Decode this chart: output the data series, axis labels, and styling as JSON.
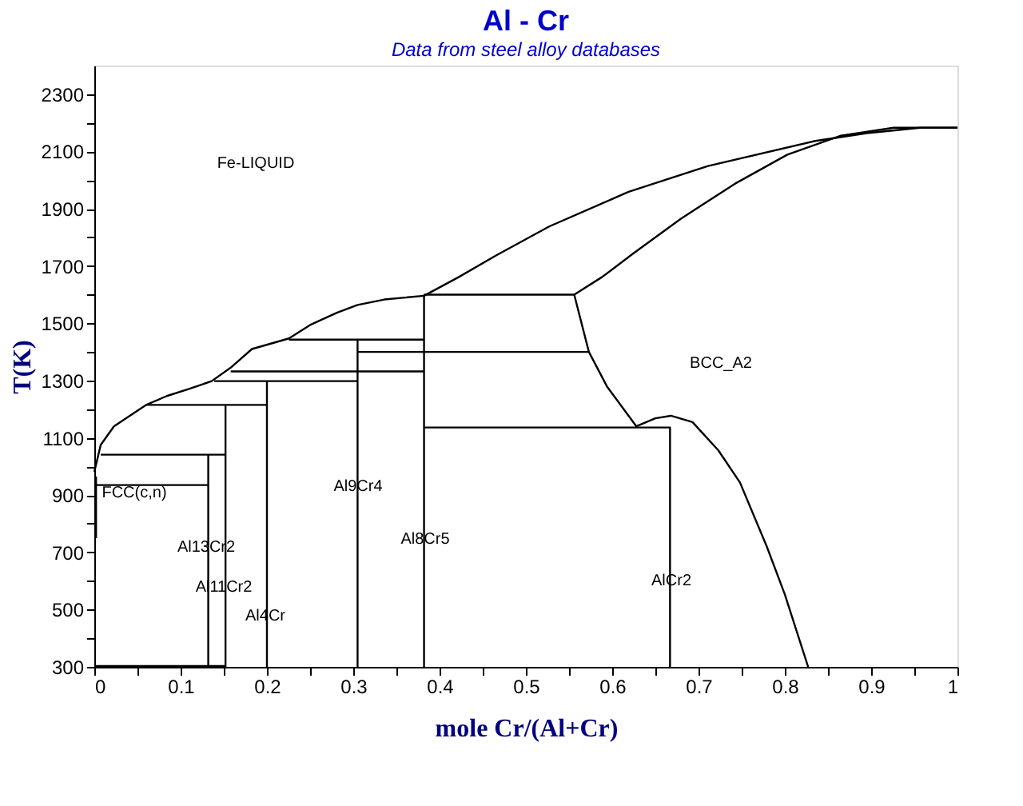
{
  "chart_data": {
    "type": "line",
    "title": "Al - Cr",
    "subtitle": "Data from steel alloy databases",
    "xlabel": "mole Cr/(Al+Cr)",
    "ylabel": "T(K)",
    "xlim": [
      0,
      1
    ],
    "ylim": [
      300,
      2400
    ],
    "xticks": [
      0,
      {
        "value": 0.05,
        "label": null
      },
      0.1,
      {
        "value": 0.15,
        "label": null
      },
      0.2,
      {
        "value": 0.25,
        "label": null
      },
      0.3,
      {
        "value": 0.35,
        "label": null
      },
      0.4,
      {
        "value": 0.45,
        "label": null
      },
      0.5,
      {
        "value": 0.55,
        "label": null
      },
      0.6,
      {
        "value": 0.65,
        "label": null
      },
      0.7,
      {
        "value": 0.75,
        "label": null
      },
      0.8,
      {
        "value": 0.85,
        "label": null
      },
      0.9,
      {
        "value": 0.95,
        "label": null
      },
      1
    ],
    "yticks": [
      300,
      {
        "value": 400,
        "label": null
      },
      500,
      {
        "value": 600,
        "label": null
      },
      700,
      {
        "value": 800,
        "label": null
      },
      900,
      {
        "value": 1000,
        "label": null
      },
      1100,
      {
        "value": 1200,
        "label": null
      },
      1300,
      {
        "value": 1400,
        "label": null
      },
      1500,
      {
        "value": 1600,
        "label": null
      },
      1700,
      {
        "value": 1800,
        "label": null
      },
      1900,
      {
        "value": 2000,
        "label": null
      },
      2100,
      {
        "value": 2200,
        "label": null
      },
      2300
    ],
    "grid": false,
    "line_style": "solid",
    "marker": "none",
    "series": [
      {
        "color": "#000000",
        "x": [
          0,
          0.0074,
          0.0227,
          0.0596,
          0.084,
          0.109,
          0.136,
          0.158,
          0.1826,
          0.2255,
          0.25,
          0.281,
          0.305,
          0.336,
          0.382,
          0.422,
          0.465,
          0.527,
          0.619,
          0.711,
          0.834,
          0.895,
          0.957,
          1.0
        ],
        "values": [
          981,
          1075,
          1140,
          1214,
          1246,
          1270,
          1298,
          1345,
          1410,
          1447,
          1494,
          1537,
          1564,
          1583,
          1596,
          1661,
          1736,
          1838,
          1959,
          2049,
          2136,
          2164,
          2183,
          2183
        ]
      },
      {
        "color": "#000000",
        "x": [
          0.556,
          0.588,
          0.625,
          0.68,
          0.742,
          0.803,
          0.865,
          0.926,
          1.0
        ],
        "values": [
          1600,
          1661,
          1745,
          1866,
          1987,
          2089,
          2155,
          2183,
          2183
        ]
      },
      {
        "color": "#000000",
        "x": [
          0.556,
          0.573,
          0.594,
          0.628,
          0.65,
          0.668,
          0.693,
          0.723,
          0.748,
          0.779,
          0.8,
          0.827
        ],
        "values": [
          1600,
          1400,
          1279,
          1140,
          1168,
          1177,
          1155,
          1056,
          944,
          721,
          553,
          300
        ]
      },
      {
        "color": "#000000",
        "x": [
          0.382,
          0.556
        ],
        "values": [
          1600,
          1600
        ]
      },
      {
        "color": "#000000",
        "x": [
          0.305,
          0.573
        ],
        "values": [
          1400,
          1400
        ]
      },
      {
        "color": "#000000",
        "x": [
          0.2255,
          0.382
        ],
        "values": [
          1443,
          1443
        ]
      },
      {
        "color": "#000000",
        "x": [
          0.158,
          0.382
        ],
        "values": [
          1332,
          1332
        ]
      },
      {
        "color": "#000000",
        "x": [
          0.139,
          0.305
        ],
        "values": [
          1298,
          1298
        ]
      },
      {
        "color": "#000000",
        "x": [
          0.0596,
          0.2
        ],
        "values": [
          1215,
          1215
        ]
      },
      {
        "color": "#000000",
        "x": [
          0.0074,
          0.152
        ],
        "values": [
          1041,
          1041
        ]
      },
      {
        "color": "#000000",
        "x": [
          0,
          0.132
        ],
        "values": [
          935,
          935
        ]
      },
      {
        "color": "#000000",
        "x": [
          0.382,
          0.667,
          0.667
        ],
        "values": [
          1136,
          1136,
          300
        ]
      },
      {
        "color": "#000000",
        "x": [
          0.382,
          0.382
        ],
        "values": [
          1600,
          300
        ]
      },
      {
        "color": "#000000",
        "x": [
          0.305,
          0.305
        ],
        "values": [
          1443,
          300
        ]
      },
      {
        "color": "#000000",
        "x": [
          0.2,
          0.2
        ],
        "values": [
          1298,
          300
        ]
      },
      {
        "color": "#000000",
        "x": [
          0.152,
          0.152
        ],
        "values": [
          1215,
          300
        ]
      },
      {
        "color": "#000000",
        "x": [
          0.132,
          0.132
        ],
        "values": [
          1041,
          300
        ]
      },
      {
        "color": "#000000",
        "x": [
          0.002,
          0.002
        ],
        "values": [
          965,
          750
        ]
      },
      {
        "color": "#000000",
        "x": [
          0,
          0.152
        ],
        "values": [
          303,
          303
        ]
      }
    ],
    "annotations": [
      "Fe-LIQUID",
      "BCC_A2",
      "FCC(c,n)",
      "Al13Cr2",
      "Al11Cr2",
      "Al4Cr",
      "Al9Cr4",
      "Al8Cr5",
      "AlCr2"
    ]
  }
}
